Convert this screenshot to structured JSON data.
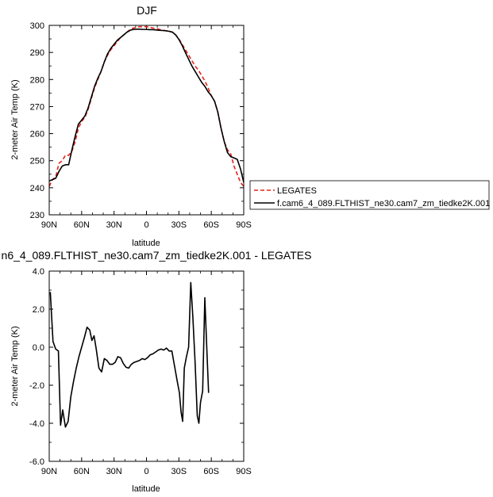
{
  "chart_data": [
    {
      "type": "line",
      "title": "DJF",
      "xlabel": "latitude",
      "ylabel": "2-meter Air Temp (K)",
      "xlim": [
        -90,
        90
      ],
      "ylim": [
        230,
        300
      ],
      "x_ticks": [
        -90,
        -60,
        -30,
        0,
        30,
        60,
        90
      ],
      "x_tick_labels": [
        "90N",
        "60N",
        "30N",
        "0",
        "30S",
        "60S",
        "90S"
      ],
      "y_ticks": [
        230,
        240,
        250,
        260,
        270,
        280,
        290,
        300
      ],
      "y_tick_labels": [
        "230",
        "240",
        "250",
        "260",
        "270",
        "280",
        "290",
        "300"
      ],
      "legend_position": "right",
      "series": [
        {
          "name": "LEGATES",
          "color": "#e8231e",
          "dash": "dashed",
          "points": [
            [
              -90,
              240.5
            ],
            [
              -87,
              243
            ],
            [
              -84,
              244
            ],
            [
              -81,
              249
            ],
            [
              -78,
              250
            ],
            [
              -75,
              252
            ],
            [
              -72,
              252
            ],
            [
              -69,
              253.5
            ],
            [
              -66,
              257
            ],
            [
              -63,
              262
            ],
            [
              -60,
              264.5
            ],
            [
              -57,
              266
            ],
            [
              -54,
              269
            ],
            [
              -51,
              273
            ],
            [
              -48,
              277
            ],
            [
              -45,
              280
            ],
            [
              -42,
              283
            ],
            [
              -39,
              286.5
            ],
            [
              -36,
              289
            ],
            [
              -33,
              291
            ],
            [
              -30,
              292.5
            ],
            [
              -27,
              294
            ],
            [
              -24,
              295.5
            ],
            [
              -21,
              296.5
            ],
            [
              -18,
              297.5
            ],
            [
              -15,
              298.5
            ],
            [
              -12,
              299
            ],
            [
              -9,
              299.3
            ],
            [
              -6,
              299.5
            ],
            [
              -3,
              299.5
            ],
            [
              0,
              299.5
            ],
            [
              3,
              299.3
            ],
            [
              6,
              299
            ],
            [
              9,
              298.8
            ],
            [
              12,
              298.5
            ],
            [
              15,
              298.2
            ],
            [
              18,
              298
            ],
            [
              21,
              297.8
            ],
            [
              24,
              297.5
            ],
            [
              27,
              296.5
            ],
            [
              30,
              295
            ],
            [
              33,
              293
            ],
            [
              36,
              291
            ],
            [
              39,
              289
            ],
            [
              42,
              287
            ],
            [
              45,
              285
            ],
            [
              48,
              283.5
            ],
            [
              51,
              281.5
            ],
            [
              54,
              279.5
            ],
            [
              57,
              277
            ],
            [
              60,
              274
            ],
            [
              63,
              272
            ],
            [
              66,
              268
            ],
            [
              69,
              262
            ],
            [
              72,
              257
            ],
            [
              75,
              254
            ],
            [
              78,
              252.5
            ],
            [
              81,
              248
            ],
            [
              84,
              245
            ],
            [
              87,
              242
            ],
            [
              90,
              240.5
            ]
          ]
        },
        {
          "name": "f.cam6_4_089.FLTHIST_ne30.cam7_zm_tiedke2K.001",
          "color": "#000000",
          "dash": "solid",
          "points": [
            [
              -90,
              242.5
            ],
            [
              -87,
              243
            ],
            [
              -84,
              243.5
            ],
            [
              -81,
              246
            ],
            [
              -78,
              248
            ],
            [
              -75,
              248.5
            ],
            [
              -72,
              248.5
            ],
            [
              -69,
              254
            ],
            [
              -66,
              259
            ],
            [
              -63,
              263.5
            ],
            [
              -60,
              265
            ],
            [
              -57,
              266.5
            ],
            [
              -54,
              269.5
            ],
            [
              -51,
              273.5
            ],
            [
              -48,
              277.5
            ],
            [
              -45,
              280.5
            ],
            [
              -42,
              283
            ],
            [
              -39,
              286.5
            ],
            [
              -36,
              289.5
            ],
            [
              -33,
              291.5
            ],
            [
              -30,
              293
            ],
            [
              -27,
              294.5
            ],
            [
              -24,
              295.5
            ],
            [
              -21,
              296.5
            ],
            [
              -18,
              297.5
            ],
            [
              -15,
              298.2
            ],
            [
              -12,
              298.5
            ],
            [
              -9,
              298.6
            ],
            [
              -6,
              298.6
            ],
            [
              -3,
              298.5
            ],
            [
              0,
              298.5
            ],
            [
              3,
              298.4
            ],
            [
              6,
              298.4
            ],
            [
              9,
              298.3
            ],
            [
              12,
              298.2
            ],
            [
              15,
              298.1
            ],
            [
              18,
              298
            ],
            [
              21,
              297.8
            ],
            [
              24,
              297.5
            ],
            [
              27,
              296.5
            ],
            [
              30,
              294.8
            ],
            [
              33,
              292.6
            ],
            [
              36,
              290
            ],
            [
              39,
              287.5
            ],
            [
              42,
              285
            ],
            [
              45,
              283
            ],
            [
              48,
              281
            ],
            [
              51,
              279
            ],
            [
              54,
              277.5
            ],
            [
              57,
              275.5
            ],
            [
              60,
              274
            ],
            [
              63,
              272
            ],
            [
              66,
              268
            ],
            [
              69,
              262
            ],
            [
              72,
              257
            ],
            [
              75,
              253
            ],
            [
              78,
              251.5
            ],
            [
              81,
              251
            ],
            [
              84,
              250.5
            ],
            [
              87,
              247
            ],
            [
              90,
              242
            ]
          ]
        }
      ]
    },
    {
      "type": "line",
      "title": "n6_4_089.FLTHIST_ne30.cam7_zm_tiedke2K.001 - LEGATES",
      "xlabel": "latitude",
      "ylabel": "2-meter Air Temp (K)",
      "xlim": [
        -90,
        90
      ],
      "ylim": [
        -6,
        4
      ],
      "x_ticks": [
        -90,
        -60,
        -30,
        0,
        30,
        60,
        90
      ],
      "x_tick_labels": [
        "90N",
        "60N",
        "30N",
        "0",
        "30S",
        "60S",
        "90S"
      ],
      "y_ticks": [
        -6,
        -4,
        -2,
        0,
        2,
        4
      ],
      "y_tick_labels": [
        "-6.0",
        "-4.0",
        "-2.0",
        "0.0",
        "2.0",
        "4.0"
      ],
      "series": [
        {
          "color": "#000000",
          "dash": "solid",
          "points": [
            [
              -89,
              2.9
            ],
            [
              -86.5,
              0.3
            ],
            [
              -84,
              -0.1
            ],
            [
              -81.5,
              -0.2
            ],
            [
              -79.5,
              -4.1
            ],
            [
              -77.5,
              -3.3
            ],
            [
              -75,
              -4.2
            ],
            [
              -72.5,
              -3.9
            ],
            [
              -70,
              -2.6
            ],
            [
              -67.5,
              -1.8
            ],
            [
              -65,
              -1.1
            ],
            [
              -62.5,
              -0.5
            ],
            [
              -60,
              0.0
            ],
            [
              -57.5,
              0.5
            ],
            [
              -55,
              1.05
            ],
            [
              -52.5,
              0.9
            ],
            [
              -50.5,
              0.35
            ],
            [
              -48.5,
              0.6
            ],
            [
              -46.5,
              -0.1
            ],
            [
              -44,
              -1.1
            ],
            [
              -41.5,
              -1.3
            ],
            [
              -39,
              -0.6
            ],
            [
              -36.5,
              -0.7
            ],
            [
              -34,
              -0.9
            ],
            [
              -31.5,
              -0.9
            ],
            [
              -29,
              -0.8
            ],
            [
              -26.5,
              -0.5
            ],
            [
              -24,
              -0.55
            ],
            [
              -21.5,
              -0.85
            ],
            [
              -19,
              -1.05
            ],
            [
              -16.5,
              -1.1
            ],
            [
              -14,
              -0.9
            ],
            [
              -11.5,
              -0.8
            ],
            [
              -9,
              -0.75
            ],
            [
              -6.5,
              -0.7
            ],
            [
              -4,
              -0.6
            ],
            [
              -1.5,
              -0.65
            ],
            [
              1,
              -0.55
            ],
            [
              3.5,
              -0.4
            ],
            [
              6,
              -0.35
            ],
            [
              8.5,
              -0.25
            ],
            [
              11,
              -0.15
            ],
            [
              13.5,
              -0.1
            ],
            [
              16,
              -0.15
            ],
            [
              18.5,
              -0.05
            ],
            [
              21,
              -0.2
            ],
            [
              23.5,
              -0.2
            ],
            [
              26,
              -1.0
            ],
            [
              28.5,
              -1.8
            ],
            [
              30.5,
              -2.4
            ],
            [
              32,
              -3.4
            ],
            [
              33.5,
              -3.9
            ],
            [
              35,
              -1.1
            ],
            [
              37,
              -0.5
            ],
            [
              39,
              0.0
            ],
            [
              41,
              3.4
            ],
            [
              43,
              1.5
            ],
            [
              45,
              -0.8
            ],
            [
              47,
              -3.6
            ],
            [
              48.5,
              -4.0
            ],
            [
              50,
              -2.9
            ],
            [
              52,
              -2.3
            ],
            [
              54,
              2.6
            ],
            [
              56,
              -0.3
            ],
            [
              57.5,
              -2.4
            ]
          ]
        }
      ]
    }
  ],
  "colors": {
    "legates": "#e8231e",
    "model": "#000000",
    "axes": "#000000",
    "background": "#ffffff"
  }
}
